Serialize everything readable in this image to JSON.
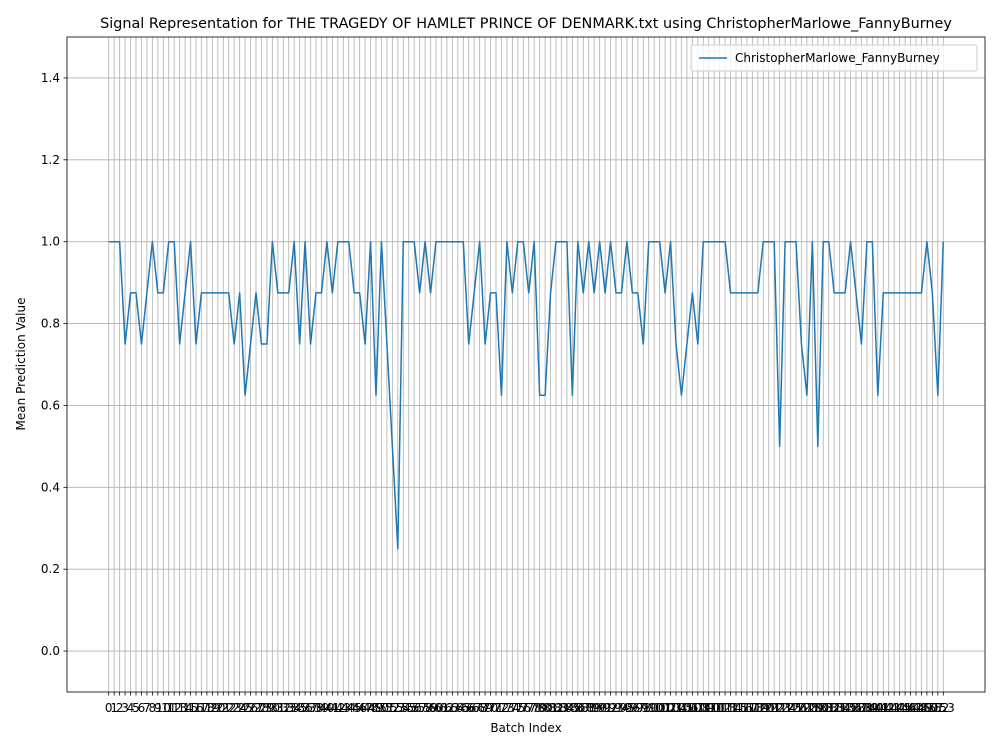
{
  "chart_data": {
    "type": "line",
    "title": "Signal Representation for THE TRAGEDY OF HAMLET PRINCE OF DENMARK.txt using ChristopherMarlowe_FannyBurney",
    "x_label": "Batch Index",
    "y_label": "Mean Prediction Value",
    "x": [
      0,
      1,
      2,
      3,
      4,
      5,
      6,
      7,
      8,
      9,
      10,
      11,
      12,
      13,
      14,
      15,
      16,
      17,
      18,
      19,
      20,
      21,
      22,
      23,
      24,
      25,
      26,
      27,
      28,
      29,
      30,
      31,
      32,
      33,
      34,
      35,
      36,
      37,
      38,
      39,
      40,
      41,
      42,
      43,
      44,
      45,
      46,
      47,
      48,
      49,
      50,
      51,
      52,
      53,
      54,
      55,
      56,
      57,
      58,
      59,
      60,
      61,
      62,
      63,
      64,
      65,
      66,
      67,
      68,
      69,
      70,
      71,
      72,
      73,
      74,
      75,
      76,
      77,
      78,
      79,
      80,
      81,
      82,
      83,
      84,
      85,
      86,
      87,
      88,
      89,
      90,
      91,
      92,
      93,
      94,
      95,
      96,
      97,
      98,
      99,
      100,
      101,
      102,
      103,
      104,
      105,
      106,
      107,
      108,
      109,
      110,
      111,
      112,
      113,
      114,
      115,
      116,
      117,
      118,
      119,
      120,
      121,
      122,
      123,
      124,
      125,
      126,
      127,
      128,
      129,
      130,
      131,
      132,
      133,
      134,
      135,
      136,
      137,
      138,
      139,
      140,
      141,
      142,
      143,
      144,
      145,
      146,
      147,
      148,
      149,
      150,
      151,
      152,
      153
    ],
    "series": [
      {
        "name": "ChristopherMarlowe_FannyBurney",
        "color": "#1f77b4",
        "values": [
          1,
          1,
          1,
          0.75,
          0.875,
          0.875,
          0.75,
          0.875,
          1,
          0.875,
          0.875,
          1,
          1,
          0.75,
          0.875,
          1,
          0.75,
          0.875,
          0.875,
          0.875,
          0.875,
          0.875,
          0.875,
          0.75,
          0.875,
          0.625,
          0.75,
          0.875,
          0.75,
          0.75,
          1,
          0.875,
          0.875,
          0.875,
          1,
          0.75,
          1,
          0.75,
          0.875,
          0.875,
          1,
          0.875,
          1,
          1,
          1,
          0.875,
          0.875,
          0.75,
          1,
          0.625,
          1,
          0.75,
          0.5,
          0.25,
          1,
          1,
          1,
          0.875,
          1,
          0.875,
          1,
          1,
          1,
          1,
          1,
          1,
          0.75,
          0.875,
          1,
          0.75,
          0.875,
          0.875,
          0.625,
          1,
          0.875,
          1,
          1,
          0.875,
          1,
          0.625,
          0.625,
          0.875,
          1,
          1,
          1,
          0.625,
          1,
          0.875,
          1,
          0.875,
          1,
          0.875,
          1,
          0.875,
          0.875,
          1,
          0.875,
          0.875,
          0.75,
          1,
          1,
          1,
          0.875,
          1,
          0.75,
          0.625,
          0.75,
          0.875,
          0.75,
          1,
          1,
          1,
          1,
          1,
          0.875,
          0.875,
          0.875,
          0.875,
          0.875,
          0.875,
          1,
          1,
          1,
          0.5,
          1,
          1,
          1,
          0.75,
          0.625,
          1,
          0.5,
          1,
          1,
          0.875,
          0.875,
          0.875,
          1,
          0.875,
          0.75,
          1,
          1,
          0.625,
          0.875,
          0.875,
          0.875,
          0.875,
          0.875,
          0.875,
          0.875,
          0.875,
          1,
          0.875,
          0.625,
          1
        ]
      }
    ],
    "xlim": [
      -7.65,
      160.65
    ],
    "ylim": [
      -0.1,
      1.5
    ],
    "xticks": [
      0,
      1,
      2,
      3,
      4,
      5,
      6,
      7,
      8,
      9,
      10,
      11,
      12,
      13,
      14,
      15,
      16,
      17,
      18,
      19,
      20,
      21,
      22,
      23,
      24,
      25,
      26,
      27,
      28,
      29,
      30,
      31,
      32,
      33,
      34,
      35,
      36,
      37,
      38,
      39,
      40,
      41,
      42,
      43,
      44,
      45,
      46,
      47,
      48,
      49,
      50,
      51,
      52,
      53,
      54,
      55,
      56,
      57,
      58,
      59,
      60,
      61,
      62,
      63,
      64,
      65,
      66,
      67,
      68,
      69,
      70,
      71,
      72,
      73,
      74,
      75,
      76,
      77,
      78,
      79,
      80,
      81,
      82,
      83,
      84,
      85,
      86,
      87,
      88,
      89,
      90,
      91,
      92,
      93,
      94,
      95,
      96,
      97,
      98,
      99,
      100,
      101,
      102,
      103,
      104,
      105,
      106,
      107,
      108,
      109,
      110,
      111,
      112,
      113,
      114,
      115,
      116,
      117,
      118,
      119,
      120,
      121,
      122,
      123,
      124,
      125,
      126,
      127,
      128,
      129,
      130,
      131,
      132,
      133,
      134,
      135,
      136,
      137,
      138,
      139,
      140,
      141,
      142,
      143,
      144,
      145,
      146,
      147,
      148,
      149,
      150,
      151,
      152,
      153
    ],
    "yticks": [
      {
        "value": 0,
        "label": "0.0"
      },
      {
        "value": 0.2,
        "label": "0.2"
      },
      {
        "value": 0.4,
        "label": "0.4"
      },
      {
        "value": 0.6,
        "label": "0.6"
      },
      {
        "value": 0.8,
        "label": "0.8"
      },
      {
        "value": 1,
        "label": "1.0"
      },
      {
        "value": 1.2,
        "label": "1.2"
      },
      {
        "value": 1.4,
        "label": "1.4"
      }
    ],
    "grid": true,
    "legend": "upper right"
  }
}
